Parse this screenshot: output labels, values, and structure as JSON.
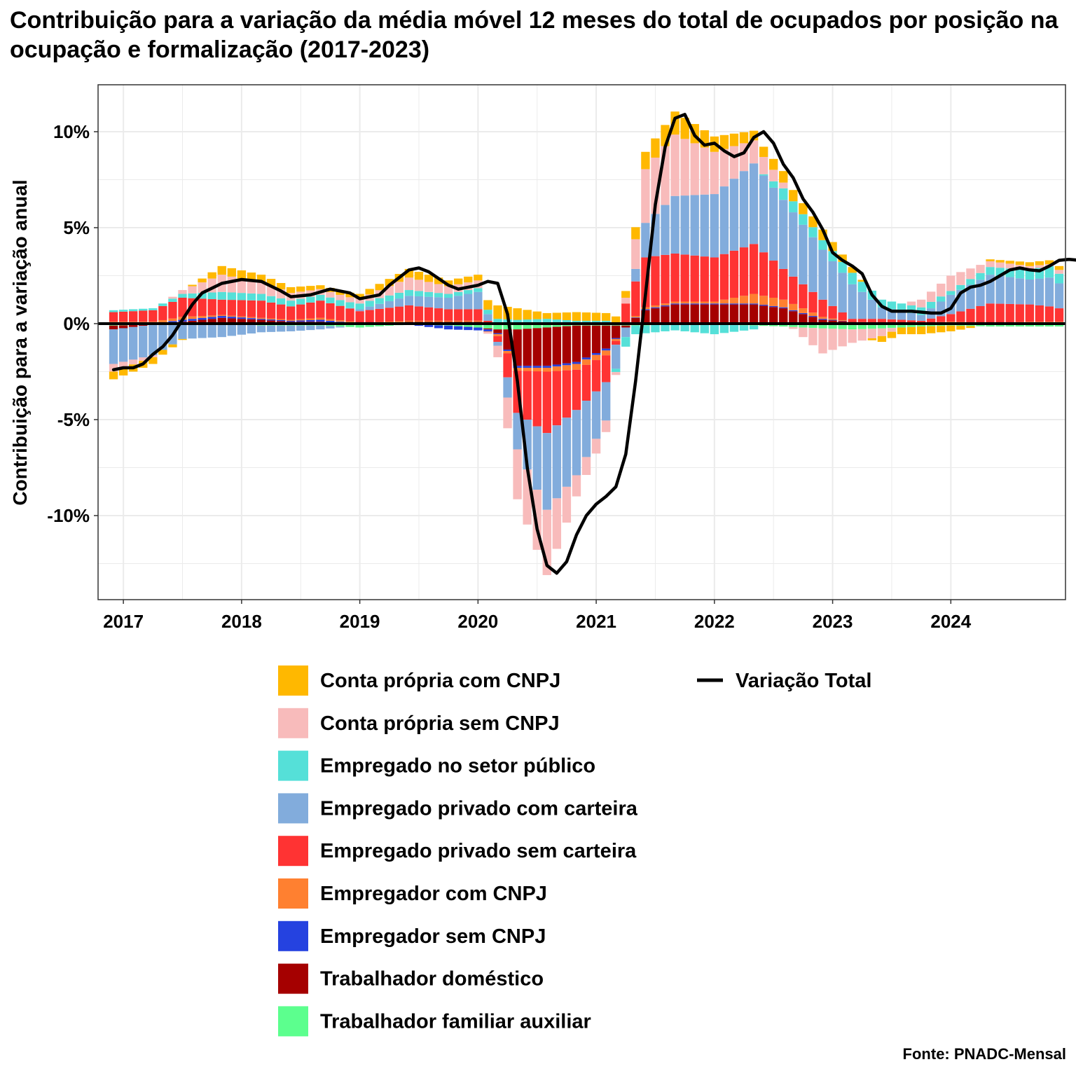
{
  "chart_data": {
    "type": "bar",
    "title": "Contribuição para a variação da média móvel 12 meses do total de ocupados por posição na ocupação e formalização (2017-2023)",
    "xlabel": "",
    "ylabel": "Contribuição para a variação anual",
    "source": "Fonte: PNADC-Mensal",
    "x_ticks": [
      "2017",
      "2018",
      "2019",
      "2020",
      "2021",
      "2022",
      "2023",
      "2024"
    ],
    "y_ticks": [
      "10%",
      "5%",
      "0%",
      "-5%",
      "-10%"
    ],
    "y_tick_values": [
      10,
      5,
      0,
      -5,
      -10
    ],
    "ylim": [
      -14.5,
      12.5
    ],
    "xlim": [
      "2016-11",
      "2024-12"
    ],
    "stacked": true,
    "grid": true,
    "legend_position": "bottom",
    "legend": [
      "Conta própria com CNPJ",
      "Conta própria sem CNPJ",
      "Empregado no setor público",
      "Empregado privado com carteira",
      "Empregado privado sem carteira",
      "Empregador com CNPJ",
      "Empregador sem CNPJ",
      "Trabalhador doméstico",
      "Trabalhador familiar auxiliar",
      "Variação Total"
    ],
    "series_colors": [
      "#FFB800",
      "#F8BBBB",
      "#55E0D8",
      "#82ACDC",
      "#FF3333",
      "#FF8030",
      "#2542E0",
      "#A50000",
      "#5CFF8E",
      "#000000"
    ],
    "months_start": "2016-12",
    "anchors": [
      {
        "m": "2016-12",
        "v": [
          -0.4,
          -0.4,
          0.1,
          -1.8,
          0.5,
          0.1,
          0.0,
          -0.2,
          -0.1
        ]
      },
      {
        "m": "2017-04",
        "v": [
          -0.35,
          -0.1,
          0.1,
          -1.6,
          0.6,
          0.1,
          0.0,
          0.0,
          -0.05
        ]
      },
      {
        "m": "2017-07",
        "v": [
          -0.05,
          0.2,
          0.2,
          -0.8,
          1.0,
          0.15,
          0.1,
          0.1,
          0.0
        ]
      },
      {
        "m": "2017-11",
        "v": [
          0.45,
          0.9,
          0.4,
          -0.7,
          0.8,
          0.05,
          0.1,
          0.3,
          0.0
        ]
      },
      {
        "m": "2018-03",
        "v": [
          0.4,
          0.6,
          0.35,
          -0.35,
          0.9,
          0.05,
          0.05,
          0.2,
          -0.1
        ]
      },
      {
        "m": "2018-06",
        "v": [
          0.3,
          0.4,
          0.3,
          -0.3,
          0.7,
          0.05,
          0.05,
          0.1,
          -0.1
        ]
      },
      {
        "m": "2018-09",
        "v": [
          0.2,
          0.3,
          0.3,
          -0.2,
          0.9,
          0.1,
          0.1,
          0.1,
          -0.1
        ]
      },
      {
        "m": "2019-01",
        "v": [
          0.25,
          0.25,
          0.3,
          0.1,
          0.6,
          0.05,
          0.0,
          0.0,
          -0.2
        ]
      },
      {
        "m": "2019-06",
        "v": [
          0.45,
          0.65,
          0.3,
          0.5,
          0.8,
          0.05,
          0.0,
          0.1,
          -0.05
        ]
      },
      {
        "m": "2019-10",
        "v": [
          0.3,
          0.4,
          0.2,
          0.6,
          0.6,
          0.05,
          -0.2,
          0.1,
          -0.1
        ]
      },
      {
        "m": "2020-01",
        "v": [
          0.3,
          0.4,
          0.2,
          0.9,
          0.6,
          0.05,
          -0.15,
          0.1,
          -0.2
        ]
      },
      {
        "m": "2020-03",
        "v": [
          0.7,
          -0.6,
          0.25,
          -0.2,
          -0.3,
          -0.1,
          -0.05,
          -0.2,
          -0.3
        ]
      },
      {
        "m": "2020-05",
        "v": [
          0.6,
          -2.6,
          0.2,
          -1.9,
          -2.2,
          -0.15,
          -0.1,
          -1.9,
          -0.3
        ]
      },
      {
        "m": "2020-08",
        "v": [
          0.3,
          -3.4,
          0.25,
          -4.0,
          -3.2,
          -0.2,
          -0.1,
          -2.0,
          -0.2
        ]
      },
      {
        "m": "2020-11",
        "v": [
          0.45,
          -1.1,
          0.15,
          -3.4,
          -2.1,
          -0.3,
          -0.1,
          -1.9,
          -0.1
        ]
      },
      {
        "m": "2021-02",
        "v": [
          0.4,
          -0.6,
          0.15,
          -2.0,
          -1.4,
          -0.25,
          -0.1,
          -1.2,
          -0.1
        ]
      },
      {
        "m": "2021-04",
        "v": [
          0.35,
          0.3,
          -0.5,
          -0.5,
          1.0,
          0.05,
          0.0,
          -0.1,
          -0.1
        ]
      },
      {
        "m": "2021-06",
        "v": [
          0.9,
          2.8,
          -0.4,
          1.8,
          2.6,
          0.1,
          0.05,
          0.7,
          -0.1
        ]
      },
      {
        "m": "2021-09",
        "v": [
          1.2,
          3.2,
          -0.35,
          3.0,
          2.5,
          0.1,
          0.05,
          1.0,
          0.0
        ]
      },
      {
        "m": "2022-01",
        "v": [
          0.8,
          2.2,
          -0.5,
          3.3,
          2.3,
          0.1,
          0.05,
          1.0,
          -0.05
        ]
      },
      {
        "m": "2022-05",
        "v": [
          0.5,
          1.2,
          -0.2,
          4.2,
          2.6,
          0.5,
          0.05,
          1.0,
          -0.1
        ]
      },
      {
        "m": "2022-08",
        "v": [
          0.6,
          0.3,
          0.6,
          3.6,
          1.6,
          0.4,
          0.05,
          0.8,
          -0.15
        ]
      },
      {
        "m": "2022-12",
        "v": [
          0.55,
          -1.3,
          0.5,
          2.6,
          0.9,
          0.1,
          0.05,
          0.2,
          -0.25
        ]
      },
      {
        "m": "2023-03",
        "v": [
          0.3,
          -0.7,
          0.6,
          1.8,
          0.15,
          0.0,
          0.0,
          0.1,
          -0.3
        ]
      },
      {
        "m": "2023-06",
        "v": [
          -0.3,
          -0.4,
          0.4,
          0.6,
          0.2,
          0.0,
          0.0,
          0.05,
          -0.25
        ]
      },
      {
        "m": "2023-10",
        "v": [
          -0.4,
          0.4,
          0.4,
          0.3,
          0.1,
          0.0,
          0.0,
          0.05,
          -0.15
        ]
      },
      {
        "m": "2024-01",
        "v": [
          -0.3,
          0.8,
          0.2,
          1.0,
          0.4,
          0.05,
          0.0,
          0.05,
          -0.1
        ]
      },
      {
        "m": "2024-05",
        "v": [
          0.1,
          0.3,
          0.4,
          1.5,
          1.0,
          0.05,
          0.0,
          0.0,
          -0.15
        ]
      },
      {
        "m": "2024-09",
        "v": [
          0.2,
          0.2,
          0.5,
          1.3,
          0.9,
          0.05,
          0.0,
          0.05,
          -0.15
        ]
      },
      {
        "m": "2024-11",
        "v": [
          0.2,
          0.1,
          0.6,
          1.5,
          0.8,
          0.05,
          0.0,
          0.05,
          -0.15
        ]
      },
      {
        "m": "2024-12",
        "v": [
          0.2,
          0.2,
          0.5,
          1.3,
          0.7,
          0.05,
          0.0,
          0.05,
          -0.15
        ]
      }
    ],
    "total": [
      {
        "m": "2016-12",
        "v": -2.4
      },
      {
        "m": "2017-01",
        "v": -2.3
      },
      {
        "m": "2017-02",
        "v": -2.3
      },
      {
        "m": "2017-03",
        "v": -2.1
      },
      {
        "m": "2017-04",
        "v": -1.6
      },
      {
        "m": "2017-05",
        "v": -1.2
      },
      {
        "m": "2017-06",
        "v": -0.6
      },
      {
        "m": "2017-07",
        "v": 0.2
      },
      {
        "m": "2017-08",
        "v": 1.0
      },
      {
        "m": "2017-09",
        "v": 1.6
      },
      {
        "m": "2017-11",
        "v": 2.1
      },
      {
        "m": "2018-01",
        "v": 2.3
      },
      {
        "m": "2018-03",
        "v": 2.2
      },
      {
        "m": "2018-05",
        "v": 1.7
      },
      {
        "m": "2018-06",
        "v": 1.4
      },
      {
        "m": "2018-08",
        "v": 1.5
      },
      {
        "m": "2018-10",
        "v": 1.8
      },
      {
        "m": "2018-12",
        "v": 1.6
      },
      {
        "m": "2019-01",
        "v": 1.3
      },
      {
        "m": "2019-03",
        "v": 1.5
      },
      {
        "m": "2019-04",
        "v": 2.0
      },
      {
        "m": "2019-06",
        "v": 2.8
      },
      {
        "m": "2019-07",
        "v": 2.9
      },
      {
        "m": "2019-08",
        "v": 2.7
      },
      {
        "m": "2019-10",
        "v": 2.0
      },
      {
        "m": "2019-11",
        "v": 1.8
      },
      {
        "m": "2020-01",
        "v": 2.0
      },
      {
        "m": "2020-02",
        "v": 2.2
      },
      {
        "m": "2020-03",
        "v": 2.1
      },
      {
        "m": "2020-04",
        "v": 0.5
      },
      {
        "m": "2020-05",
        "v": -3.0
      },
      {
        "m": "2020-06",
        "v": -7.5
      },
      {
        "m": "2020-07",
        "v": -10.7
      },
      {
        "m": "2020-08",
        "v": -12.6
      },
      {
        "m": "2020-09",
        "v": -13.0
      },
      {
        "m": "2020-10",
        "v": -12.4
      },
      {
        "m": "2020-11",
        "v": -11.0
      },
      {
        "m": "2020-12",
        "v": -10.0
      },
      {
        "m": "2021-01",
        "v": -9.4
      },
      {
        "m": "2021-02",
        "v": -9.0
      },
      {
        "m": "2021-03",
        "v": -8.5
      },
      {
        "m": "2021-04",
        "v": -6.8
      },
      {
        "m": "2021-05",
        "v": -3.0
      },
      {
        "m": "2021-06",
        "v": 1.5
      },
      {
        "m": "2021-07",
        "v": 6.2
      },
      {
        "m": "2021-08",
        "v": 9.2
      },
      {
        "m": "2021-09",
        "v": 10.7
      },
      {
        "m": "2021-10",
        "v": 10.9
      },
      {
        "m": "2021-11",
        "v": 9.8
      },
      {
        "m": "2021-12",
        "v": 9.3
      },
      {
        "m": "2022-01",
        "v": 9.4
      },
      {
        "m": "2022-02",
        "v": 9.0
      },
      {
        "m": "2022-03",
        "v": 8.7
      },
      {
        "m": "2022-04",
        "v": 8.9
      },
      {
        "m": "2022-05",
        "v": 9.7
      },
      {
        "m": "2022-06",
        "v": 10.0
      },
      {
        "m": "2022-07",
        "v": 9.4
      },
      {
        "m": "2022-08",
        "v": 8.3
      },
      {
        "m": "2022-09",
        "v": 7.6
      },
      {
        "m": "2022-10",
        "v": 6.5
      },
      {
        "m": "2022-11",
        "v": 5.8
      },
      {
        "m": "2022-12",
        "v": 4.9
      },
      {
        "m": "2023-01",
        "v": 3.7
      },
      {
        "m": "2023-02",
        "v": 3.3
      },
      {
        "m": "2023-03",
        "v": 3.0
      },
      {
        "m": "2023-04",
        "v": 2.6
      },
      {
        "m": "2023-05",
        "v": 1.5
      },
      {
        "m": "2023-06",
        "v": 0.9
      },
      {
        "m": "2023-07",
        "v": 0.65
      },
      {
        "m": "2023-09",
        "v": 0.65
      },
      {
        "m": "2023-11",
        "v": 0.55
      },
      {
        "m": "2023-12",
        "v": 0.55
      },
      {
        "m": "2024-01",
        "v": 0.8
      },
      {
        "m": "2024-02",
        "v": 1.6
      },
      {
        "m": "2024-03",
        "v": 1.9
      },
      {
        "m": "2024-04",
        "v": 2.0
      },
      {
        "m": "2024-05",
        "v": 2.2
      },
      {
        "m": "2024-06",
        "v": 2.5
      },
      {
        "m": "2024-07",
        "v": 2.8
      },
      {
        "m": "2024-08",
        "v": 2.9
      },
      {
        "m": "2024-09",
        "v": 2.8
      },
      {
        "m": "2024-10",
        "v": 2.75
      },
      {
        "m": "2024-11",
        "v": 3.0
      },
      {
        "m": "2024-12",
        "v": 3.3
      },
      {
        "m": "2025-01",
        "v": 3.35
      },
      {
        "m": "2025-02",
        "v": 3.3
      },
      {
        "m": "2025-03",
        "v": 2.8
      }
    ]
  }
}
